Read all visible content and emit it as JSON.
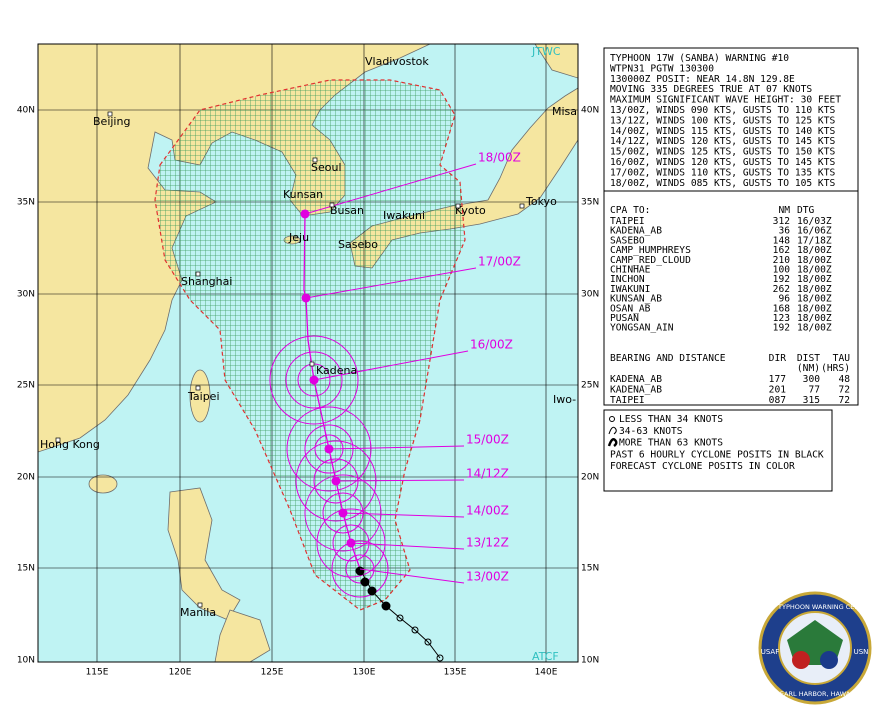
{
  "map": {
    "lat_labels": [
      "40N",
      "35N",
      "30N",
      "25N",
      "20N",
      "15N",
      "10N"
    ],
    "lon_labels": [
      "115E",
      "120E",
      "125E",
      "130E",
      "135E",
      "140E"
    ],
    "places": [
      "Vladivostok",
      "Beijing",
      "Seoul",
      "Kunsan",
      "Busan",
      "Jeju",
      "Sasebo",
      "Iwakuni",
      "Kyoto",
      "Tokyo",
      "Misa",
      "Shanghai",
      "Kadena",
      "Taipei",
      "Hong Kong",
      "Manila",
      "Iwo-"
    ],
    "forecast_labels": [
      "18/00Z",
      "17/00Z",
      "16/00Z",
      "15/00Z",
      "14/12Z",
      "14/00Z",
      "13/12Z",
      "13/00Z"
    ],
    "corner_labels": [
      "JTWC",
      "ATCF"
    ]
  },
  "warning_panel": {
    "lines": [
      "TYPHOON 17W (SANBA) WARNING #10",
      "WTPN31 PGTW 130300",
      "130000Z POSIT: NEAR 14.8N 129.8E",
      "MOVING 335 DEGREES TRUE AT 07 KNOTS",
      "MAXIMUM SIGNIFICANT WAVE HEIGHT: 30 FEET",
      "13/00Z, WINDS 090 KTS, GUSTS TO 110 KTS",
      "13/12Z, WINDS 100 KTS, GUSTS TO 125 KTS",
      "14/00Z, WINDS 115 KTS, GUSTS TO 140 KTS",
      "14/12Z, WINDS 120 KTS, GUSTS TO 145 KTS",
      "15/00Z, WINDS 125 KTS, GUSTS TO 150 KTS",
      "16/00Z, WINDS 120 KTS, GUSTS TO 145 KTS",
      "17/00Z, WINDS 110 KTS, GUSTS TO 135 KTS",
      "18/00Z, WINDS 085 KTS, GUSTS TO 105 KTS"
    ]
  },
  "cpa_panel": {
    "header": [
      "CPA TO:",
      "NM",
      "DTG"
    ],
    "rows": [
      [
        "TAIPEI",
        "312",
        "16/03Z"
      ],
      [
        "KADENA_AB",
        "36",
        "16/06Z"
      ],
      [
        "SASEBO",
        "148",
        "17/18Z"
      ],
      [
        "CAMP_HUMPHREYS",
        "162",
        "18/00Z"
      ],
      [
        "CAMP_RED_CLOUD",
        "210",
        "18/00Z"
      ],
      [
        "CHINHAE",
        "100",
        "18/00Z"
      ],
      [
        "INCHON",
        "192",
        "18/00Z"
      ],
      [
        "IWAKUNI",
        "262",
        "18/00Z"
      ],
      [
        "KUNSAN_AB",
        "96",
        "18/00Z"
      ],
      [
        "OSAN_AB",
        "168",
        "18/00Z"
      ],
      [
        "PUSAN",
        "123",
        "18/00Z"
      ],
      [
        "YONGSAN_AIN",
        "192",
        "18/00Z"
      ]
    ]
  },
  "bearing_panel": {
    "header": [
      "BEARING AND DISTANCE",
      "DIR",
      "DIST",
      "TAU"
    ],
    "subheader": [
      "(NM)",
      "(HRS)"
    ],
    "rows": [
      [
        "KADENA_AB",
        "177",
        "300",
        "48"
      ],
      [
        "KADENA_AB",
        "201",
        "77",
        "72"
      ],
      [
        "TAIPEI",
        "087",
        "315",
        "72"
      ]
    ]
  },
  "legend": {
    "items": [
      "LESS THAN 34 KNOTS",
      "34-63 KNOTS",
      "MORE THAN 63 KNOTS",
      "PAST 6 HOURLY CYCLONE POSITS IN BLACK",
      "FORECAST CYCLONE POSITS IN COLOR"
    ]
  },
  "logo": {
    "ring": "JOINT TYPHOON WARNING CENTER",
    "bottom": "PEARL HARBOR, HAWAII",
    "left": "USAF",
    "right": "USN"
  }
}
